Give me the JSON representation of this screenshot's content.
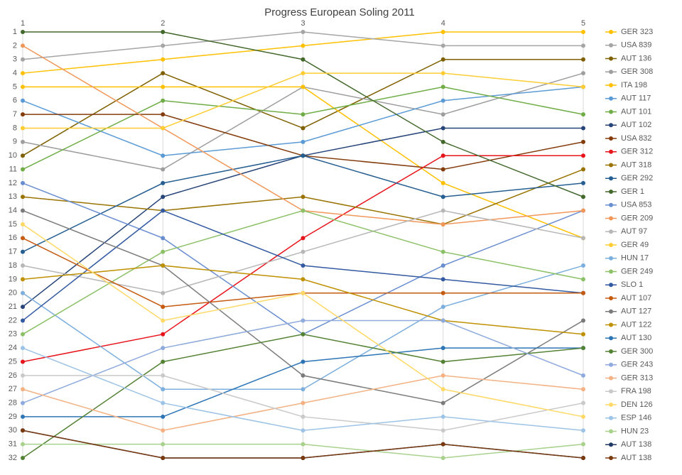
{
  "chart_data": {
    "type": "line",
    "title": "Progress European Soling 2011",
    "x": [
      1,
      2,
      3,
      4,
      5
    ],
    "xlim": [
      1,
      5
    ],
    "xticks": [
      1,
      2,
      3,
      4,
      5
    ],
    "x_axis_position": "top",
    "ylim": [
      1,
      32
    ],
    "yticks": [
      1,
      2,
      3,
      4,
      5,
      6,
      7,
      8,
      9,
      10,
      11,
      12,
      13,
      14,
      15,
      16,
      17,
      18,
      19,
      20,
      21,
      22,
      23,
      24,
      25,
      26,
      27,
      28,
      29,
      30,
      31,
      32
    ],
    "y_inverted": true,
    "grid": "x",
    "legend": "right",
    "series": [
      {
        "name": "GER 323",
        "color": "#ffc000",
        "values": [
          4,
          3,
          2,
          1,
          1
        ]
      },
      {
        "name": "USA 839",
        "color": "#a5a5a5",
        "values": [
          3,
          2,
          1,
          2,
          2
        ]
      },
      {
        "name": "AUT 136",
        "color": "#7f6000",
        "values": [
          10,
          4,
          8,
          3,
          3
        ]
      },
      {
        "name": "GER 308",
        "color": "#9e9e9e",
        "values": [
          9,
          11,
          5,
          7,
          4
        ]
      },
      {
        "name": "ITA 198",
        "color": "#ffc000",
        "values": [
          5,
          5,
          5,
          12,
          16
        ]
      },
      {
        "name": "AUT 117",
        "color": "#5b9bd5",
        "values": [
          6,
          10,
          9,
          6,
          5
        ]
      },
      {
        "name": "AUT 101",
        "color": "#70ad47",
        "values": [
          11,
          6,
          7,
          5,
          7
        ]
      },
      {
        "name": "AUT 102",
        "color": "#264478",
        "values": [
          21,
          13,
          10,
          8,
          8
        ]
      },
      {
        "name": "USA 832",
        "color": "#843c0c",
        "values": [
          7,
          7,
          10,
          11,
          9
        ]
      },
      {
        "name": "GER 312",
        "color": "#e8141c",
        "values": [
          25,
          23,
          16,
          10,
          10
        ]
      },
      {
        "name": "AUT 318",
        "color": "#997300",
        "values": [
          13,
          14,
          13,
          15,
          11
        ]
      },
      {
        "name": "GER 292",
        "color": "#255e91",
        "values": [
          17,
          12,
          10,
          13,
          12
        ]
      },
      {
        "name": "GER 1",
        "color": "#43682b",
        "values": [
          1,
          1,
          3,
          9,
          13
        ]
      },
      {
        "name": "USA 853",
        "color": "#698ed0",
        "values": [
          12,
          16,
          23,
          18,
          14
        ]
      },
      {
        "name": "GER 209",
        "color": "#f1975a",
        "values": [
          2,
          8,
          14,
          15,
          14
        ]
      },
      {
        "name": "AUT 97",
        "color": "#b7b7b7",
        "values": [
          18,
          20,
          17,
          14,
          16
        ]
      },
      {
        "name": "GER 49",
        "color": "#ffcd33",
        "values": [
          8,
          8,
          4,
          4,
          5
        ]
      },
      {
        "name": "HUN 17",
        "color": "#7cafdd",
        "values": [
          20,
          27,
          27,
          21,
          18
        ]
      },
      {
        "name": "GER 249",
        "color": "#8cc168",
        "values": [
          23,
          17,
          14,
          17,
          19
        ]
      },
      {
        "name": "SLO 1",
        "color": "#335aa1",
        "values": [
          22,
          14,
          18,
          19,
          20
        ]
      },
      {
        "name": "AUT 107",
        "color": "#c55a11",
        "values": [
          16,
          21,
          20,
          20,
          20
        ]
      },
      {
        "name": "AUT 127",
        "color": "#7b7b7b",
        "values": [
          14,
          18,
          26,
          28,
          22
        ]
      },
      {
        "name": "AUT 122",
        "color": "#bf9000",
        "values": [
          19,
          18,
          19,
          22,
          23
        ]
      },
      {
        "name": "AUT 130",
        "color": "#2e75b6",
        "values": [
          29,
          29,
          25,
          24,
          24
        ]
      },
      {
        "name": "GER 300",
        "color": "#548235",
        "values": [
          32,
          25,
          23,
          25,
          24
        ]
      },
      {
        "name": "GER 243",
        "color": "#8faadc",
        "values": [
          28,
          24,
          22,
          22,
          26
        ]
      },
      {
        "name": "GER 313",
        "color": "#f4b183",
        "values": [
          27,
          30,
          28,
          26,
          27
        ]
      },
      {
        "name": "FRA 198",
        "color": "#c9c9c9",
        "values": [
          26,
          26,
          29,
          30,
          28
        ]
      },
      {
        "name": "DEN 126",
        "color": "#ffd966",
        "values": [
          15,
          22,
          20,
          27,
          29
        ]
      },
      {
        "name": "ESP 146",
        "color": "#9dc3e6",
        "values": [
          24,
          28,
          30,
          29,
          30
        ]
      },
      {
        "name": "HUN 23",
        "color": "#a9d18e",
        "values": [
          31,
          31,
          31,
          32,
          31
        ]
      },
      {
        "name": "AUT 138",
        "color": "#203864",
        "values": [
          30,
          32,
          32,
          31,
          32
        ]
      },
      {
        "name": "AUT 138",
        "color": "#7a3a10",
        "values": [
          30,
          32,
          32,
          31,
          32
        ]
      }
    ]
  }
}
